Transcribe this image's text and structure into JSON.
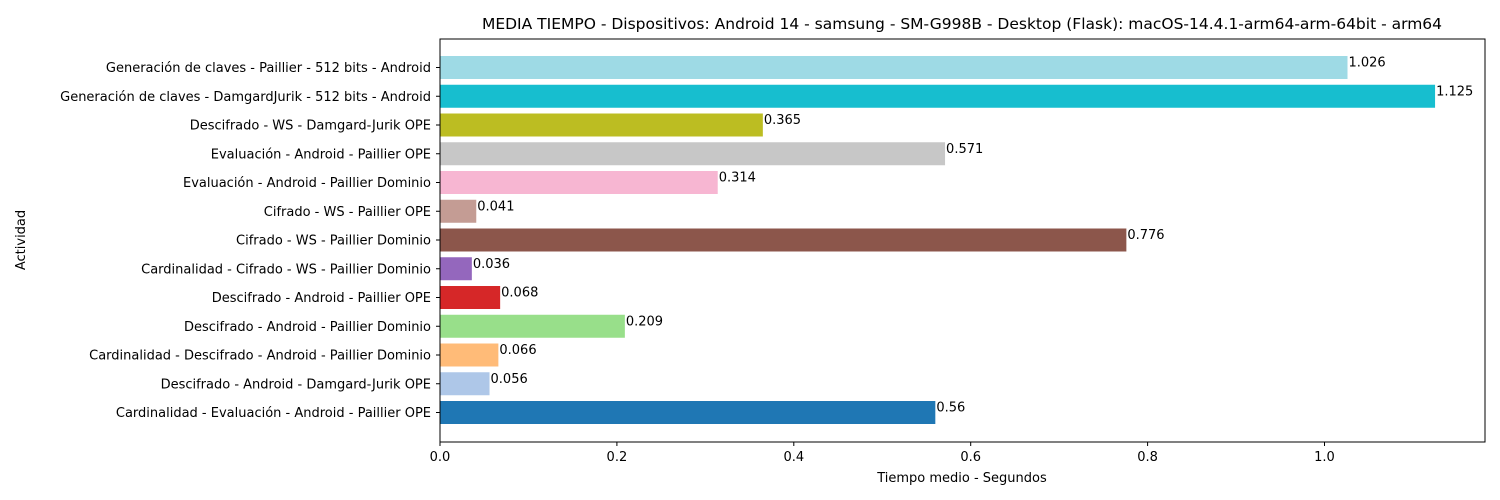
{
  "chart_data": {
    "type": "bar",
    "orientation": "horizontal",
    "title": "MEDIA TIEMPO - Dispositivos: Android 14 - samsung - SM-G998B - Desktop (Flask): macOS-14.4.1-arm64-arm-64bit - arm64",
    "xlabel": "Tiempo medio - Segundos",
    "ylabel": "Actividad",
    "xlim": [
      0,
      1.18
    ],
    "xticks": [
      "0.0",
      "0.2",
      "0.4",
      "0.6",
      "0.8",
      "1.0"
    ],
    "grid": false,
    "legend": "none",
    "categories": [
      "Generación de claves - Paillier - 512 bits - Android",
      "Generación de claves - DamgardJurik - 512 bits - Android",
      "Descifrado - WS - Damgard-Jurik OPE",
      "Evaluación - Android - Paillier OPE",
      "Evaluación - Android - Paillier Dominio",
      "Cifrado - WS - Paillier OPE",
      "Cifrado - WS - Paillier Dominio",
      "Cardinalidad - Cifrado - WS - Paillier Dominio",
      "Descifrado - Android - Paillier OPE",
      "Descifrado - Android - Paillier Dominio",
      "Cardinalidad - Descifrado - Android - Paillier Dominio",
      "Descifrado - Android - Damgard-Jurik OPE",
      "Cardinalidad - Evaluación - Android - Paillier OPE"
    ],
    "values": [
      1.026,
      1.125,
      0.365,
      0.571,
      0.314,
      0.041,
      0.776,
      0.036,
      0.068,
      0.209,
      0.066,
      0.056,
      0.56
    ],
    "value_labels": [
      "1.026",
      "1.125",
      "0.365",
      "0.571",
      "0.314",
      "0.041",
      "0.776",
      "0.036",
      "0.068",
      "0.209",
      "0.066",
      "0.056",
      "0.56"
    ],
    "colors": [
      "#9edae5",
      "#17becf",
      "#bcbd22",
      "#c7c7c7",
      "#f7b6d2",
      "#c49c94",
      "#8c564b",
      "#9467bd",
      "#d62728",
      "#98df8a",
      "#ffbb78",
      "#aec7e8",
      "#1f77b4"
    ]
  }
}
